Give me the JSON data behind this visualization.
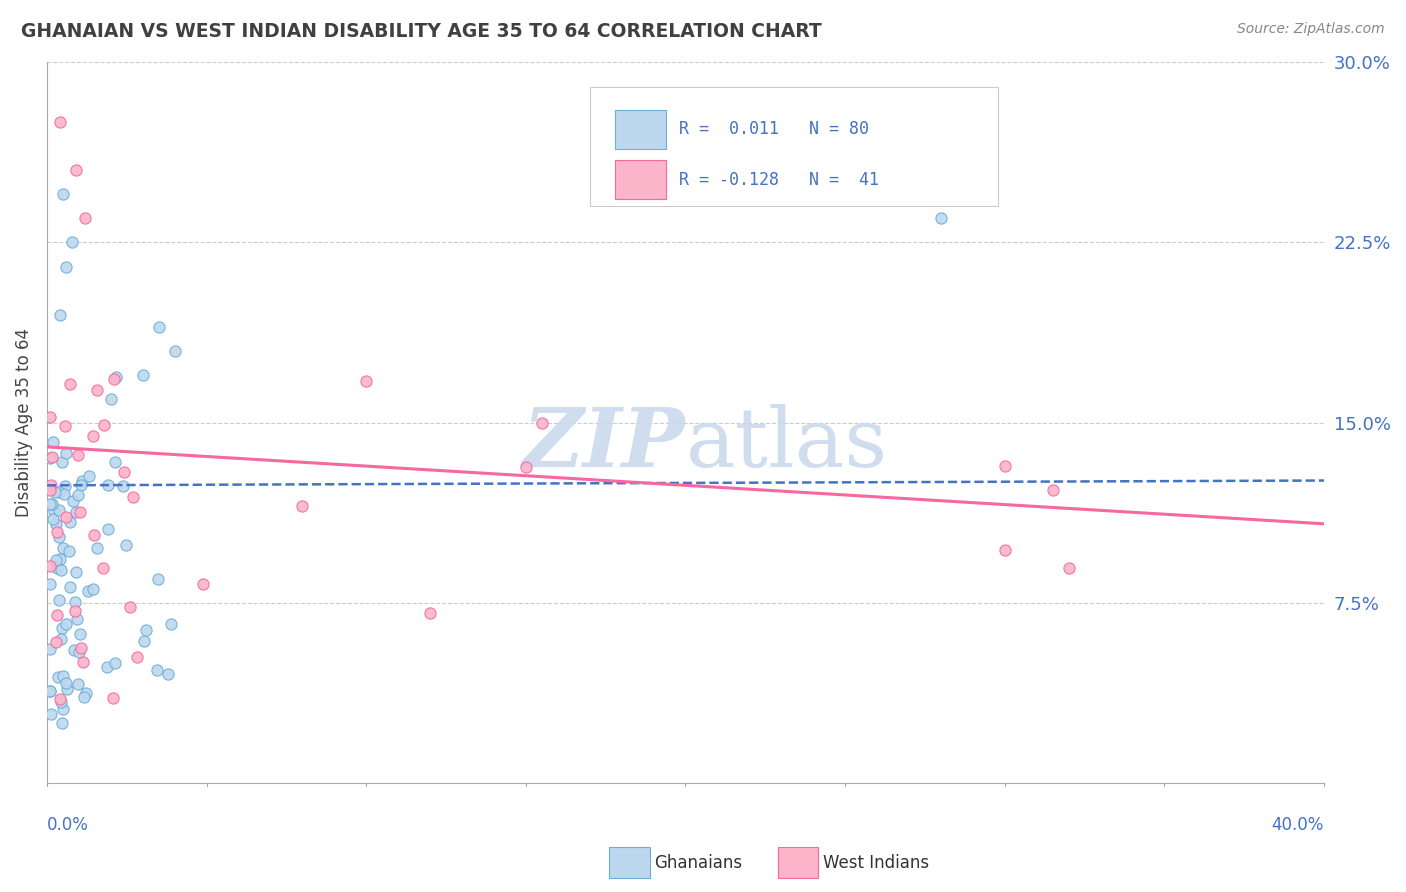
{
  "title": "GHANAIAN VS WEST INDIAN DISABILITY AGE 35 TO 64 CORRELATION CHART",
  "source": "Source: ZipAtlas.com",
  "ylabel": "Disability Age 35 to 64",
  "xlim": [
    0.0,
    0.4
  ],
  "ylim": [
    0.0,
    0.3
  ],
  "yticks_right": [
    0.075,
    0.15,
    0.225,
    0.3
  ],
  "ytick_labels_right": [
    "7.5%",
    "15.0%",
    "22.5%",
    "30.0%"
  ],
  "blue_edge_color": "#6baed6",
  "pink_edge_color": "#f768a1",
  "blue_fill_color": "#bdd7ee",
  "pink_fill_color": "#fbb4c9",
  "blue_line_color": "#4472c4",
  "pink_line_color": "#f768a1",
  "axis_label_color": "#4472c4",
  "title_color": "#404040",
  "source_color": "#888888",
  "grid_color": "#cccccc",
  "watermark_color": "#c8d8ec",
  "ghana_line_x": [
    0.0,
    0.4
  ],
  "ghana_line_y": [
    0.124,
    0.126
  ],
  "wi_line_x": [
    0.0,
    0.4
  ],
  "wi_line_y": [
    0.14,
    0.108
  ]
}
